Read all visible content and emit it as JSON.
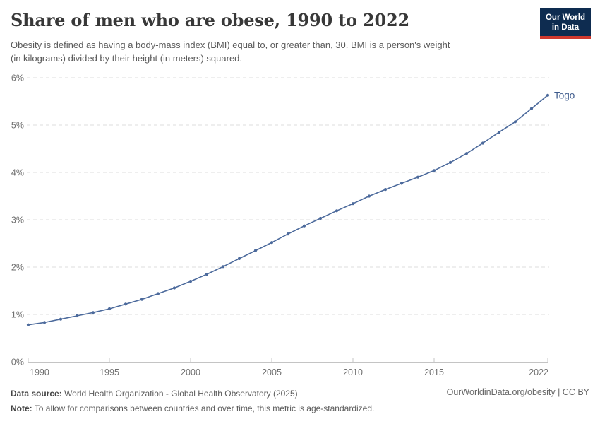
{
  "header": {
    "title": "Share of men who are obese, 1990 to 2022",
    "subtitle_lines": [
      "Obesity is defined as having a body-mass index (BMI) equal to, or greater than, 30. BMI is a person's weight",
      "(in kilograms) divided by their height (in meters) squared."
    ],
    "logo": {
      "line1": "Our World",
      "line2": "in Data",
      "bg_color": "#0e2c50",
      "stripe_color": "#d0392e"
    }
  },
  "chart_data": {
    "type": "line",
    "title": "Share of men who are obese, 1990 to 2022",
    "xlabel": "",
    "ylabel": "",
    "xlim": [
      1990,
      2022
    ],
    "ylim": [
      0,
      6
    ],
    "grid": "horizontal-dashed",
    "legend_position": "end-of-line-label",
    "x_ticks": [
      {
        "v": 1990,
        "label": "1990"
      },
      {
        "v": 1995,
        "label": "1995"
      },
      {
        "v": 2000,
        "label": "2000"
      },
      {
        "v": 2005,
        "label": "2005"
      },
      {
        "v": 2010,
        "label": "2010"
      },
      {
        "v": 2015,
        "label": "2015"
      },
      {
        "v": 2022,
        "label": "2022"
      }
    ],
    "y_ticks": [
      {
        "v": 0,
        "label": "0%"
      },
      {
        "v": 1,
        "label": "1%"
      },
      {
        "v": 2,
        "label": "2%"
      },
      {
        "v": 3,
        "label": "3%"
      },
      {
        "v": 4,
        "label": "4%"
      },
      {
        "v": 5,
        "label": "5%"
      },
      {
        "v": 6,
        "label": "6%"
      }
    ],
    "series": [
      {
        "name": "Togo",
        "color": "#4c6a9c",
        "label_color": "#3d5a8c",
        "x": [
          1990,
          1991,
          1992,
          1993,
          1994,
          1995,
          1996,
          1997,
          1998,
          1999,
          2000,
          2001,
          2002,
          2003,
          2004,
          2005,
          2006,
          2007,
          2008,
          2009,
          2010,
          2011,
          2012,
          2013,
          2014,
          2015,
          2016,
          2017,
          2018,
          2019,
          2020,
          2021,
          2022
        ],
        "values": [
          0.78,
          0.83,
          0.9,
          0.97,
          1.04,
          1.12,
          1.22,
          1.32,
          1.44,
          1.56,
          1.7,
          1.85,
          2.01,
          2.18,
          2.35,
          2.52,
          2.7,
          2.87,
          3.03,
          3.19,
          3.34,
          3.5,
          3.64,
          3.77,
          3.9,
          4.04,
          4.21,
          4.4,
          4.62,
          4.85,
          5.07,
          5.35,
          5.63
        ]
      }
    ]
  },
  "footer": {
    "datasource_label": "Data source:",
    "datasource_text": " World Health Organization - Global Health Observatory (2025)",
    "note_label": "Note:",
    "note_text": " To allow for comparisons between countries and over time, this metric is age-standardized.",
    "link": "OurWorldinData.org/obesity | CC BY"
  }
}
